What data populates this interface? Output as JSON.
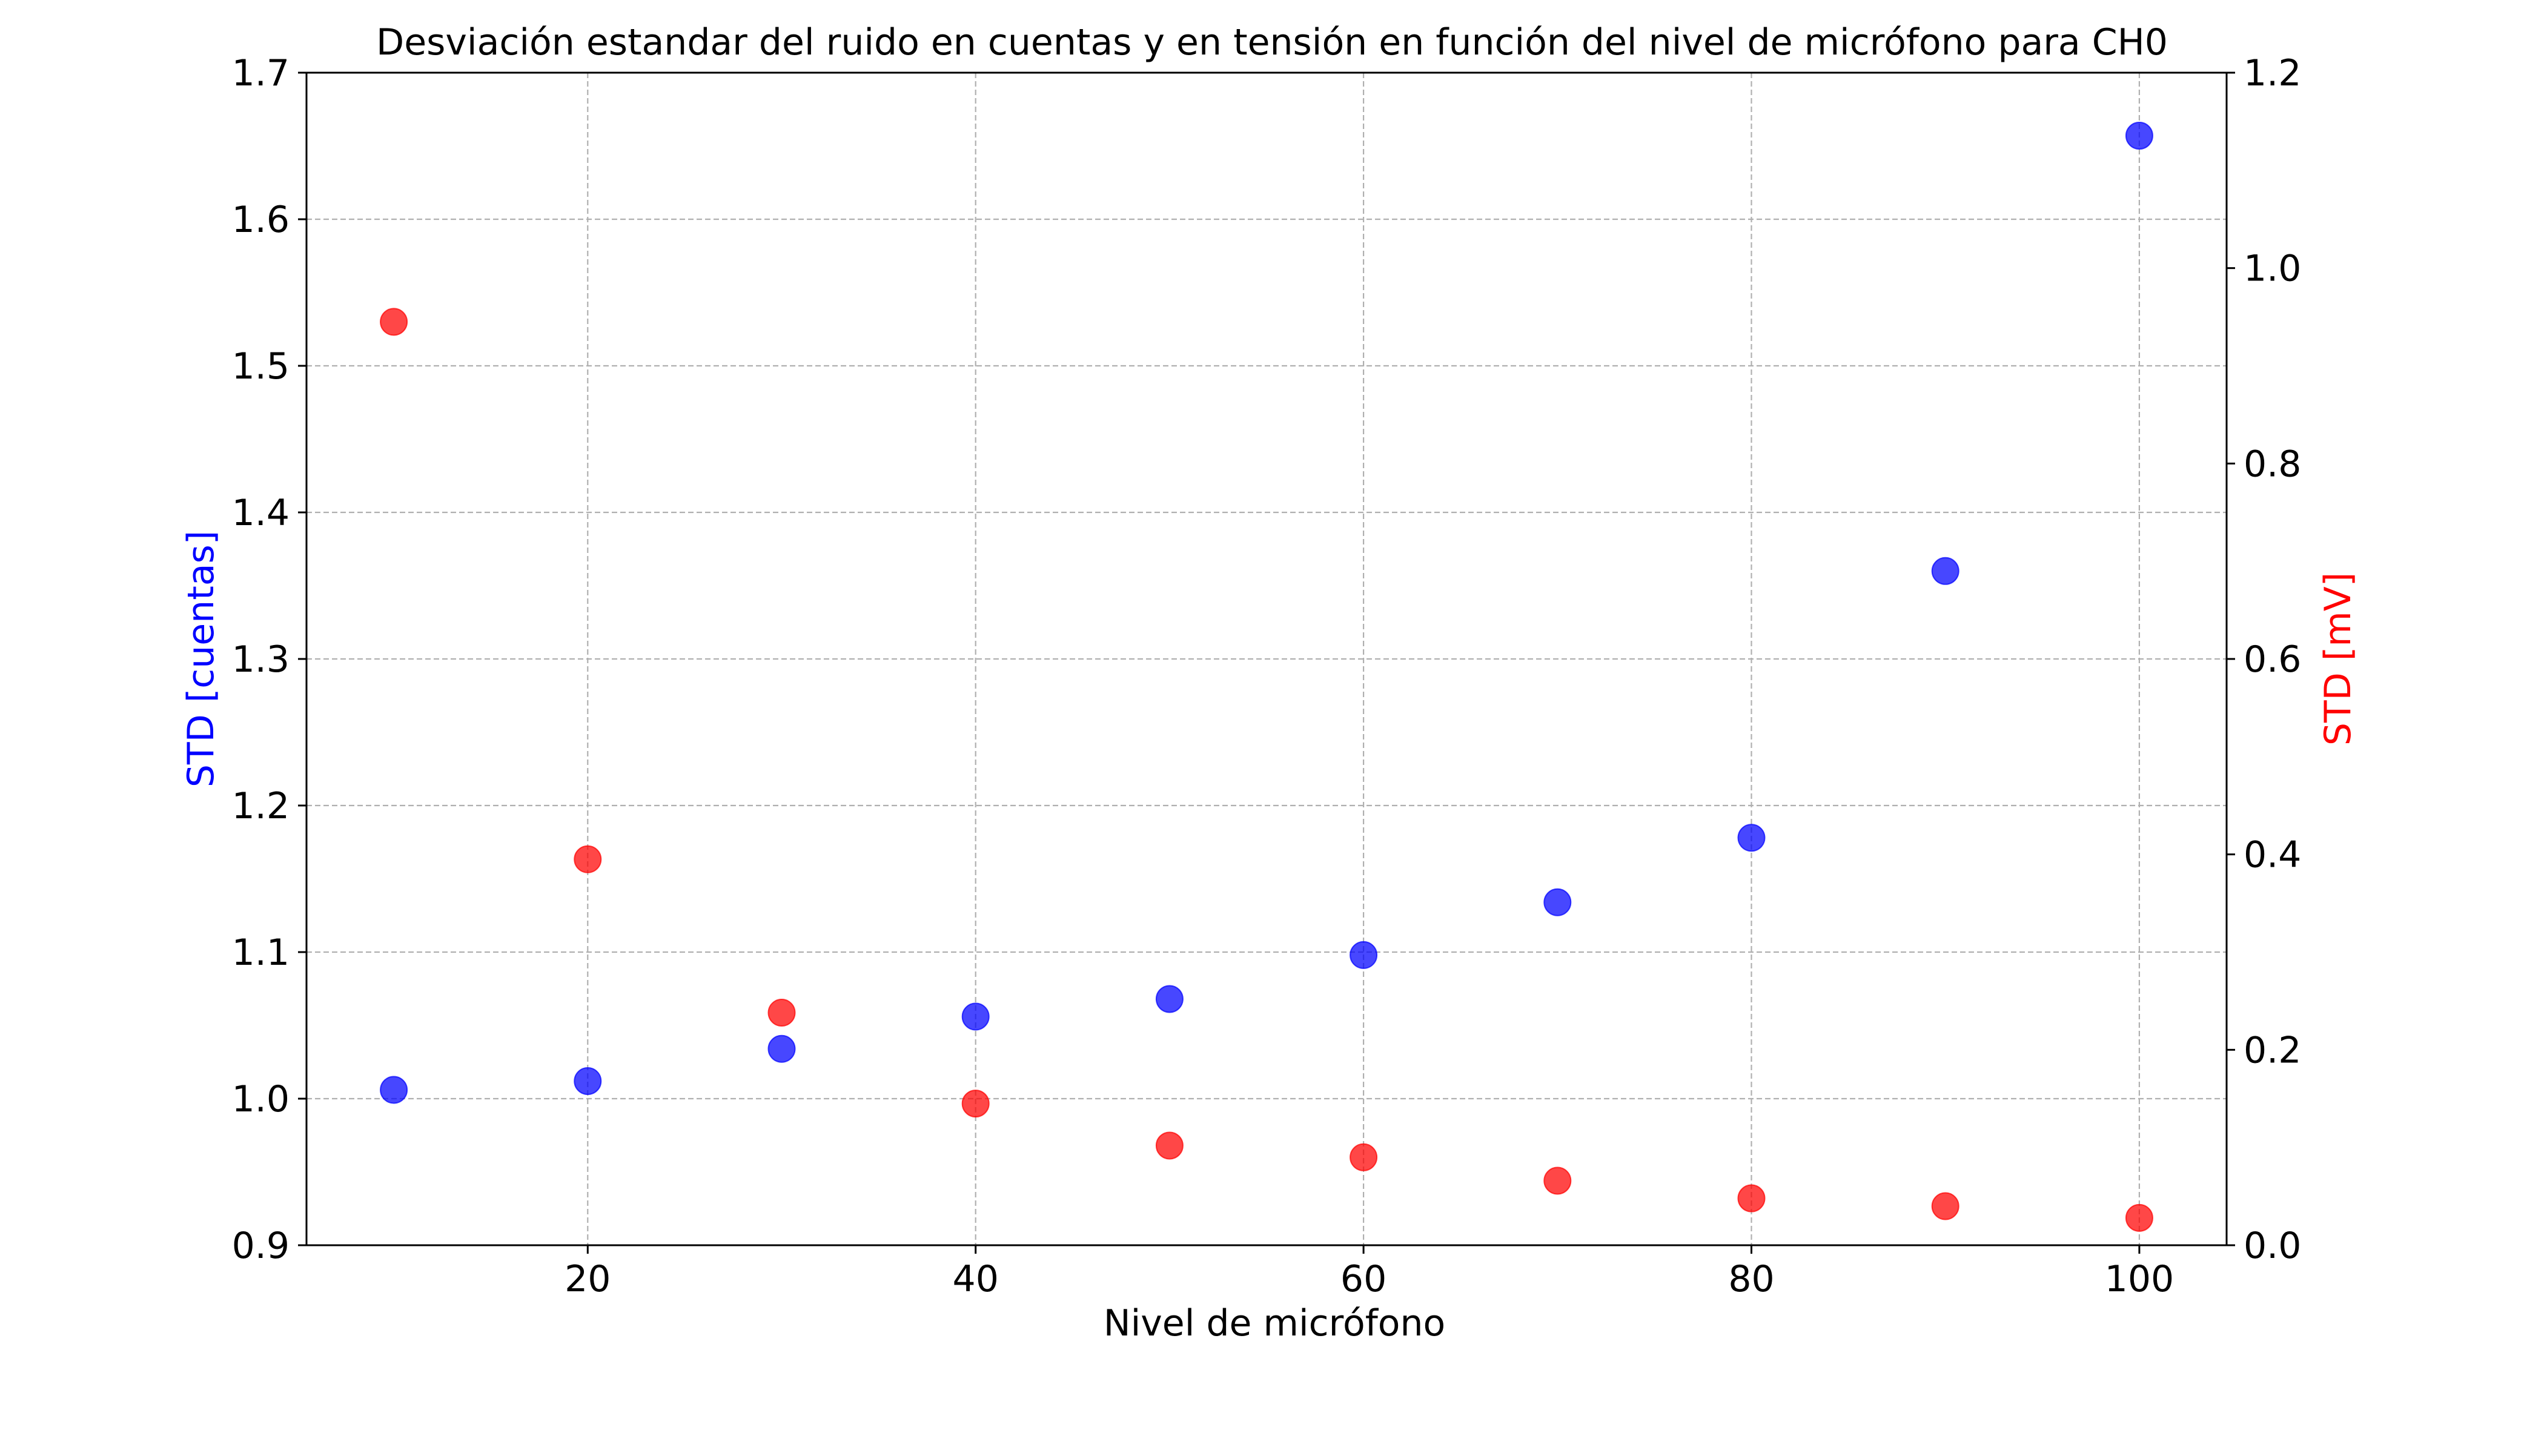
{
  "chart_data": {
    "type": "scatter",
    "title": "Desviación estandar del ruido en cuentas y en tensión en función del nivel de micrófono para CH0",
    "xlabel": "Nivel de micrófono",
    "ylabel_left": "STD [cuentas]",
    "ylabel_right": "STD [mV]",
    "x": [
      10,
      20,
      30,
      40,
      50,
      60,
      70,
      80,
      90,
      100
    ],
    "xlim": [
      5.5,
      104.5
    ],
    "xticks": [
      20,
      40,
      60,
      80,
      100
    ],
    "ylim_left": [
      0.9,
      1.7
    ],
    "yticks_left": [
      0.9,
      1.0,
      1.1,
      1.2,
      1.3,
      1.4,
      1.5,
      1.6,
      1.7
    ],
    "ylim_right": [
      0.0,
      1.2
    ],
    "yticks_right": [
      0.0,
      0.2,
      0.4,
      0.6,
      0.8,
      1.0,
      1.2
    ],
    "grid": true,
    "grid_style": "dashed",
    "series": [
      {
        "axis": "left",
        "color": "#0000ff",
        "values": [
          1.006,
          1.012,
          1.034,
          1.056,
          1.068,
          1.098,
          1.134,
          1.178,
          1.36,
          1.657
        ]
      },
      {
        "axis": "right",
        "color": "#ff0000",
        "values": [
          0.945,
          0.395,
          0.238,
          0.145,
          0.102,
          0.09,
          0.066,
          0.048,
          0.04,
          0.028
        ]
      }
    ]
  }
}
